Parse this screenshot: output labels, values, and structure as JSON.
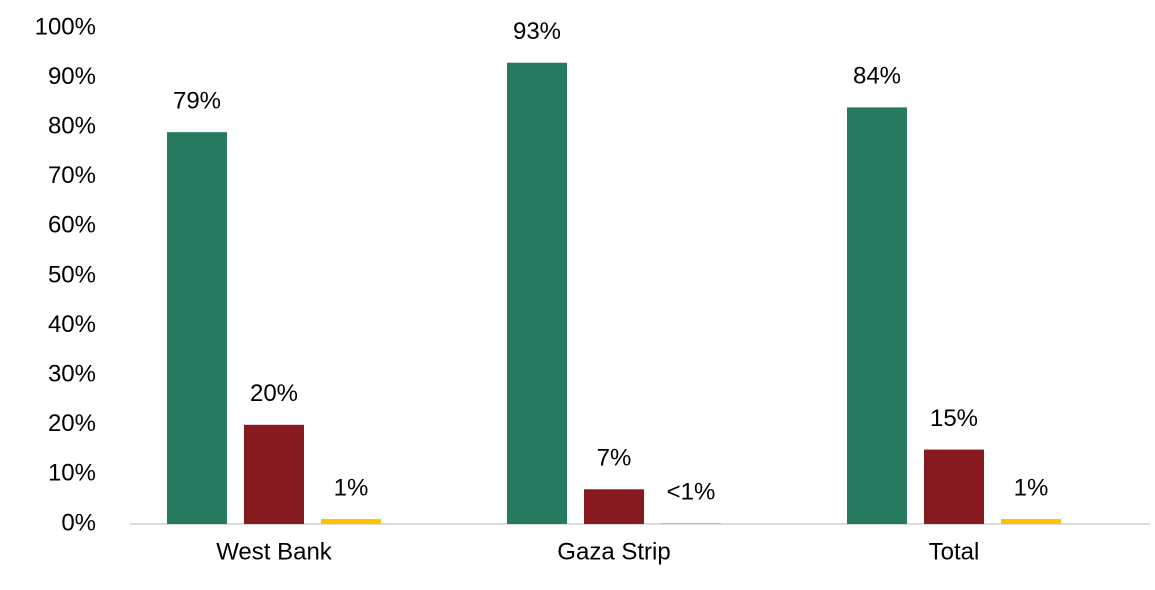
{
  "chart_data": {
    "type": "bar",
    "categories": [
      "West Bank",
      "Gaza Strip",
      "Total"
    ],
    "series": [
      {
        "color": "#267a60",
        "values": [
          79,
          93,
          84
        ],
        "value_labels": [
          "79%",
          "93%",
          "84%"
        ]
      },
      {
        "color": "#861a1f",
        "values": [
          20,
          7,
          15
        ],
        "value_labels": [
          "20%",
          "7%",
          "15%"
        ]
      },
      {
        "color": "#ffc000",
        "values": [
          1,
          0.2,
          1
        ],
        "value_labels": [
          "1%",
          "<1%",
          "1%"
        ]
      }
    ],
    "ylim": [
      0,
      100
    ],
    "yticks": [
      {
        "value": 0,
        "label": "0%"
      },
      {
        "value": 10,
        "label": "10%"
      },
      {
        "value": 20,
        "label": "20%"
      },
      {
        "value": 30,
        "label": "30%"
      },
      {
        "value": 40,
        "label": "40%"
      },
      {
        "value": 50,
        "label": "50%"
      },
      {
        "value": 60,
        "label": "60%"
      },
      {
        "value": 70,
        "label": "70%"
      },
      {
        "value": 80,
        "label": "80%"
      },
      {
        "value": 90,
        "label": "90%"
      },
      {
        "value": 100,
        "label": "100%"
      }
    ],
    "grid": false
  }
}
